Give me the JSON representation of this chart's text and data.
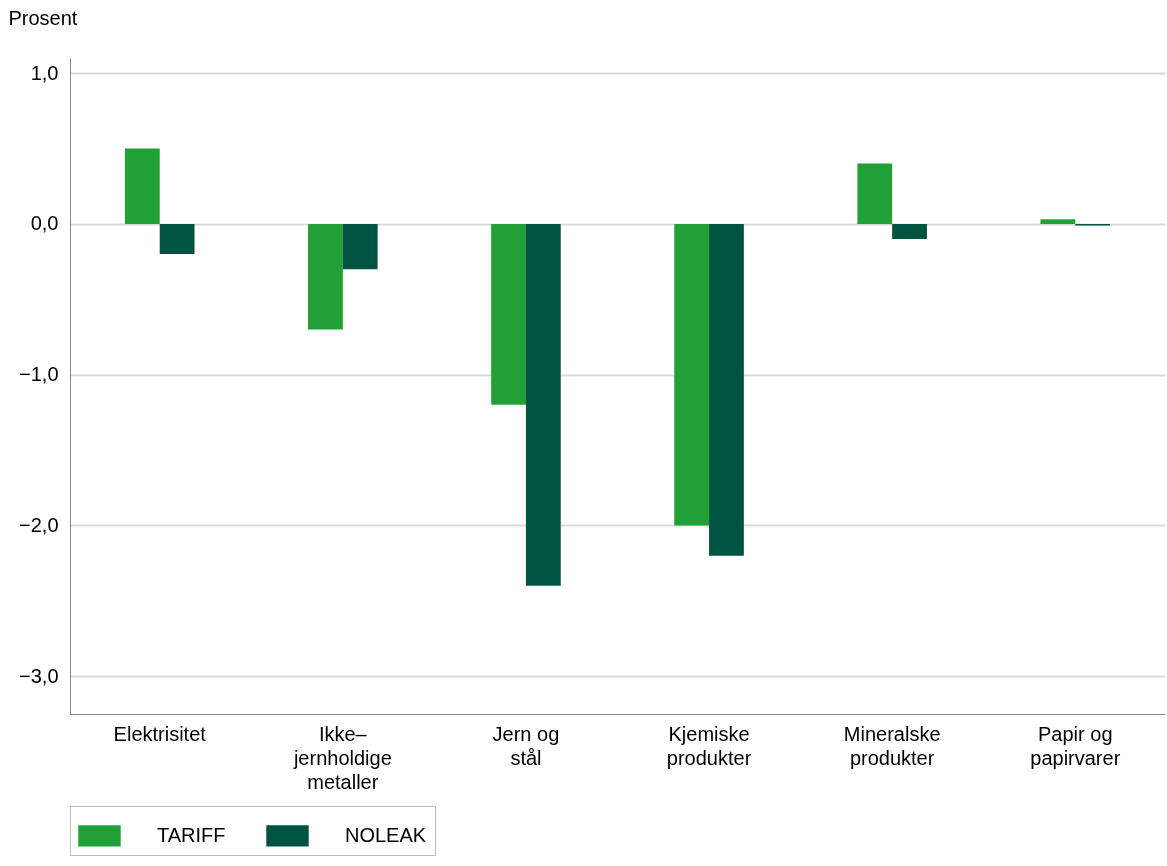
{
  "chart_data": {
    "type": "bar",
    "ylabel": "Prosent",
    "categories": [
      "Elektrisitet",
      "Ikke–\njernholdige\nmetaller",
      "Jern og\nstål",
      "Kjemiske\nprodukter",
      "Mineralske\nprodukter",
      "Papir og\npapirvarer"
    ],
    "series": [
      {
        "name": "TARIFF",
        "color": "#21a038",
        "values": [
          0.5,
          -0.7,
          -1.2,
          -2.0,
          0.4,
          0.03
        ]
      },
      {
        "name": "NOLEAK",
        "color": "#00543f",
        "values": [
          -0.2,
          -0.3,
          -2.4,
          -2.2,
          -0.1,
          -0.01
        ]
      }
    ],
    "ylim": [
      -3.25,
      1.1
    ],
    "yticks": [
      {
        "value": -3,
        "label": "−3,0"
      },
      {
        "value": -2,
        "label": "−2,0"
      },
      {
        "value": -1,
        "label": "−1,0"
      },
      {
        "value": 0,
        "label": "0,0"
      },
      {
        "value": 1,
        "label": "1,0"
      }
    ],
    "grid": "y",
    "legend": "bottom"
  }
}
